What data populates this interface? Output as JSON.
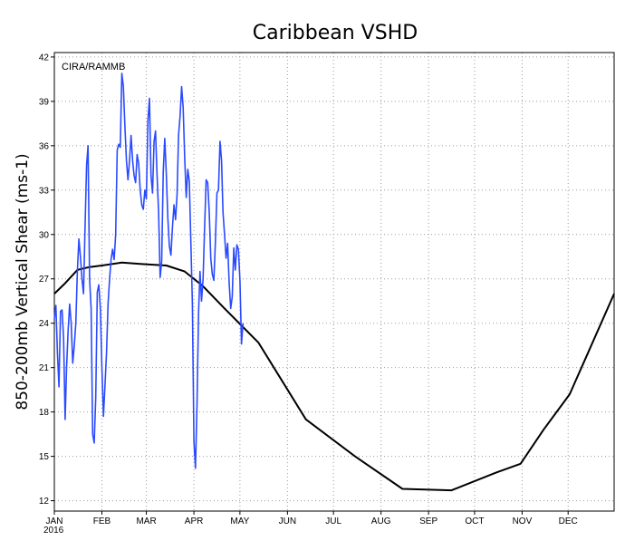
{
  "chart_data": {
    "type": "line",
    "title": "Caribbean VSHD",
    "ylabel": "850-200mb Vertical Shear (ms-1)",
    "credit": "CIRA/RAMMB",
    "year_label": "2016",
    "x_unit": "day of year",
    "xlim": [
      1,
      366
    ],
    "ylim": [
      11.3,
      42.3
    ],
    "yticks": [
      12,
      15,
      18,
      21,
      24,
      27,
      30,
      33,
      36,
      39,
      42
    ],
    "xticks": [
      {
        "day": 1,
        "label": "JAN"
      },
      {
        "day": 32,
        "label": "FEB"
      },
      {
        "day": 61,
        "label": "MAR"
      },
      {
        "day": 92,
        "label": "APR"
      },
      {
        "day": 122,
        "label": "MAY"
      },
      {
        "day": 153,
        "label": "JUN"
      },
      {
        "day": 183,
        "label": "JUL"
      },
      {
        "day": 214,
        "label": "AUG"
      },
      {
        "day": 245,
        "label": "SEP"
      },
      {
        "day": 275,
        "label": "OCT"
      },
      {
        "day": 306,
        "label": "NOV"
      },
      {
        "day": 336,
        "label": "DEC"
      }
    ],
    "grid": true,
    "series": [
      {
        "color": "#000000",
        "x": [
          1,
          8,
          16,
          24,
          32,
          45,
          58,
          74,
          86,
          98,
          112,
          134,
          165,
          197,
          228,
          260,
          289,
          305,
          320,
          337,
          349,
          366
        ],
        "y": [
          26.0,
          26.7,
          27.6,
          27.8,
          27.9,
          28.1,
          28.0,
          27.9,
          27.5,
          26.5,
          25.0,
          22.7,
          17.5,
          15.0,
          12.8,
          12.7,
          13.9,
          14.5,
          16.8,
          19.2,
          22.0,
          26.0
        ]
      },
      {
        "color": "#2a4aff",
        "x": [
          1,
          2,
          3,
          4,
          5,
          6,
          7,
          8,
          9,
          10,
          11,
          12,
          13,
          14,
          15,
          16,
          17,
          18,
          19,
          20,
          21,
          22,
          23,
          24,
          25,
          26,
          27,
          28,
          29,
          30,
          31,
          32,
          33,
          34,
          35,
          36,
          37,
          38,
          39,
          40,
          41,
          42,
          43,
          44,
          45,
          46,
          47,
          48,
          49,
          50,
          51,
          52,
          53,
          54,
          55,
          56,
          57,
          58,
          59,
          60,
          61,
          62,
          63,
          64,
          65,
          66,
          67,
          68,
          69,
          70,
          71,
          72,
          73,
          74,
          75,
          76,
          77,
          78,
          79,
          80,
          81,
          82,
          83,
          84,
          85,
          86,
          87,
          88,
          89,
          90,
          91,
          92,
          93,
          94,
          95,
          96,
          97,
          98,
          99,
          100,
          101,
          102,
          103,
          104,
          105,
          106,
          107,
          108,
          109,
          110,
          111,
          112,
          113,
          114,
          115,
          116,
          117,
          118,
          119,
          120,
          121,
          122,
          123,
          124
        ],
        "y": [
          24.3,
          25.2,
          22.0,
          19.7,
          24.8,
          24.9,
          23.0,
          17.5,
          21.0,
          23.5,
          25.3,
          24.0,
          21.3,
          22.5,
          24.0,
          27.5,
          29.7,
          28.5,
          27.0,
          26.0,
          30.5,
          34.7,
          36.0,
          27.0,
          25.0,
          16.5,
          15.9,
          19.0,
          26.1,
          26.6,
          25.0,
          21.0,
          17.7,
          19.8,
          22.0,
          25.3,
          27.0,
          28.3,
          29.0,
          28.3,
          30.0,
          35.7,
          36.1,
          35.9,
          40.9,
          40.0,
          37.3,
          35.0,
          33.7,
          35.0,
          36.7,
          35.0,
          34.0,
          33.5,
          35.4,
          34.8,
          33.0,
          32.0,
          31.7,
          33.0,
          32.4,
          37.7,
          39.2,
          34.0,
          32.8,
          36.3,
          37.0,
          34.0,
          31.5,
          27.1,
          28.2,
          34.2,
          36.5,
          34.1,
          31.1,
          29.2,
          28.6,
          30.5,
          32.0,
          31.0,
          32.7,
          36.7,
          38.0,
          40.0,
          38.6,
          35.2,
          32.5,
          34.4,
          33.6,
          29.5,
          25.3,
          16.0,
          14.2,
          18.5,
          24.7,
          27.5,
          25.5,
          27.0,
          30.5,
          33.7,
          33.5,
          31.5,
          28.4,
          27.3,
          26.9,
          29.5,
          32.8,
          33.0,
          36.3,
          35.0,
          31.5,
          30.0,
          28.4,
          29.4,
          26.7,
          25.0,
          25.8,
          29.1,
          27.6,
          29.3,
          29.0,
          26.9,
          22.6,
          24.0
        ]
      }
    ]
  }
}
